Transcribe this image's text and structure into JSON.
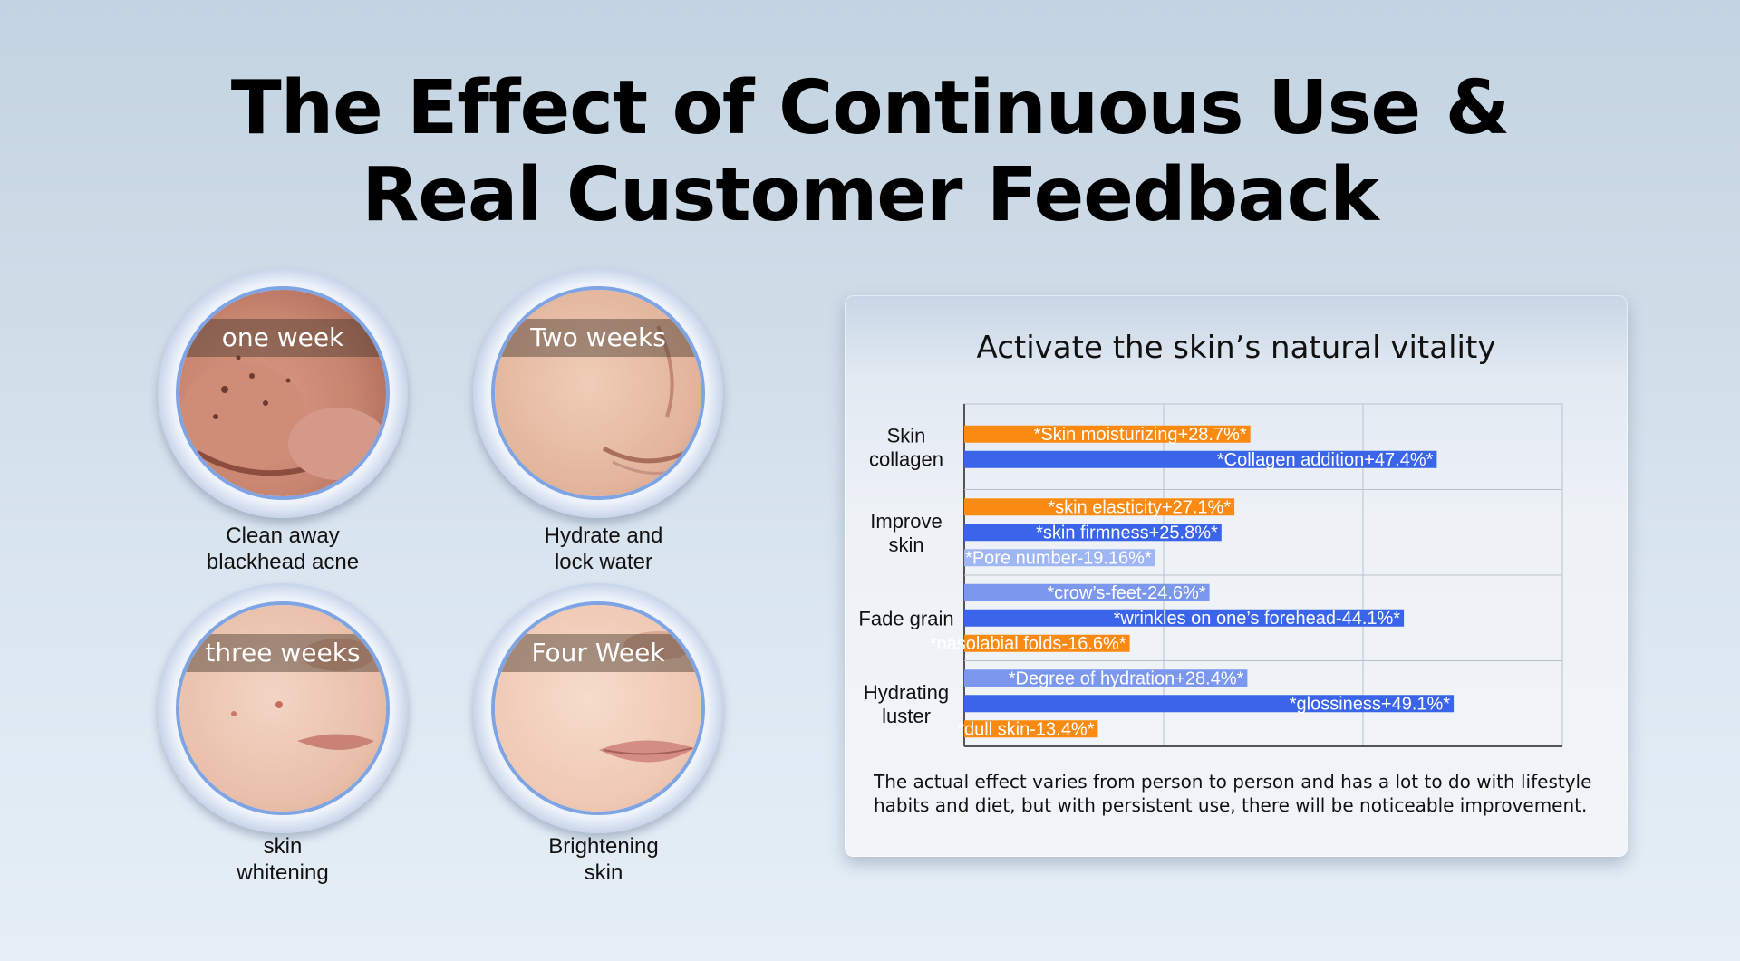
{
  "title": {
    "line1": "The Effect of Continuous Use &",
    "line2": "Real Customer Feedback"
  },
  "stages": [
    {
      "week": "one week",
      "caption1": "Clean away",
      "caption2": "blackhead acne"
    },
    {
      "week": "Two weeks",
      "caption1": "Hydrate and",
      "caption2": "lock water"
    },
    {
      "week": "three weeks",
      "caption1": "skin",
      "caption2": "whitening"
    },
    {
      "week": "Four Week",
      "caption1": "Brightening",
      "caption2": "skin"
    }
  ],
  "chart_data": {
    "type": "bar",
    "orientation": "horizontal",
    "title": "Activate the skin’s natural vitality",
    "xlim": [
      0,
      60
    ],
    "grid": true,
    "colors": {
      "orange": "#fb8a12",
      "blue": "#3a64ea",
      "light": "#9fb6f5",
      "mid": "#7b98ee"
    },
    "groups": [
      {
        "category": [
          "Skin",
          "collagen"
        ],
        "bars": [
          {
            "label": "*Skin moisturizing+28.7%*",
            "value": 28.7,
            "color": "orange"
          },
          {
            "label": "*Collagen addition+47.4%*",
            "value": 47.4,
            "color": "blue"
          }
        ]
      },
      {
        "category": [
          "Improve",
          "skin"
        ],
        "bars": [
          {
            "label": "*skin elasticity+27.1%*",
            "value": 27.1,
            "color": "orange"
          },
          {
            "label": "*skin firmness+25.8%*",
            "value": 25.8,
            "color": "blue"
          },
          {
            "label": "*Pore number-19.16%*",
            "value": 19.16,
            "color": "light"
          }
        ]
      },
      {
        "category": [
          "Fade grain"
        ],
        "bars": [
          {
            "label": "*crow’s-feet-24.6%*",
            "value": 24.6,
            "color": "mid"
          },
          {
            "label": "*wrinkles on one’s forehead-44.1%*",
            "value": 44.1,
            "color": "blue"
          },
          {
            "label": "*nasolabial folds-16.6%*",
            "value": 16.6,
            "color": "orange"
          }
        ]
      },
      {
        "category": [
          "Hydrating",
          "luster"
        ],
        "bars": [
          {
            "label": "*Degree of hydration+28.4%*",
            "value": 28.4,
            "color": "mid"
          },
          {
            "label": "*glossiness+49.1%*",
            "value": 49.1,
            "color": "blue"
          },
          {
            "label": "*dull skin-13.4%*",
            "value": 13.4,
            "color": "orange"
          }
        ]
      }
    ]
  },
  "note": {
    "line1": "The actual effect varies from person to person and has a lot to do with lifestyle",
    "line2": "habits and diet, but with persistent use, there will be noticeable improvement."
  }
}
